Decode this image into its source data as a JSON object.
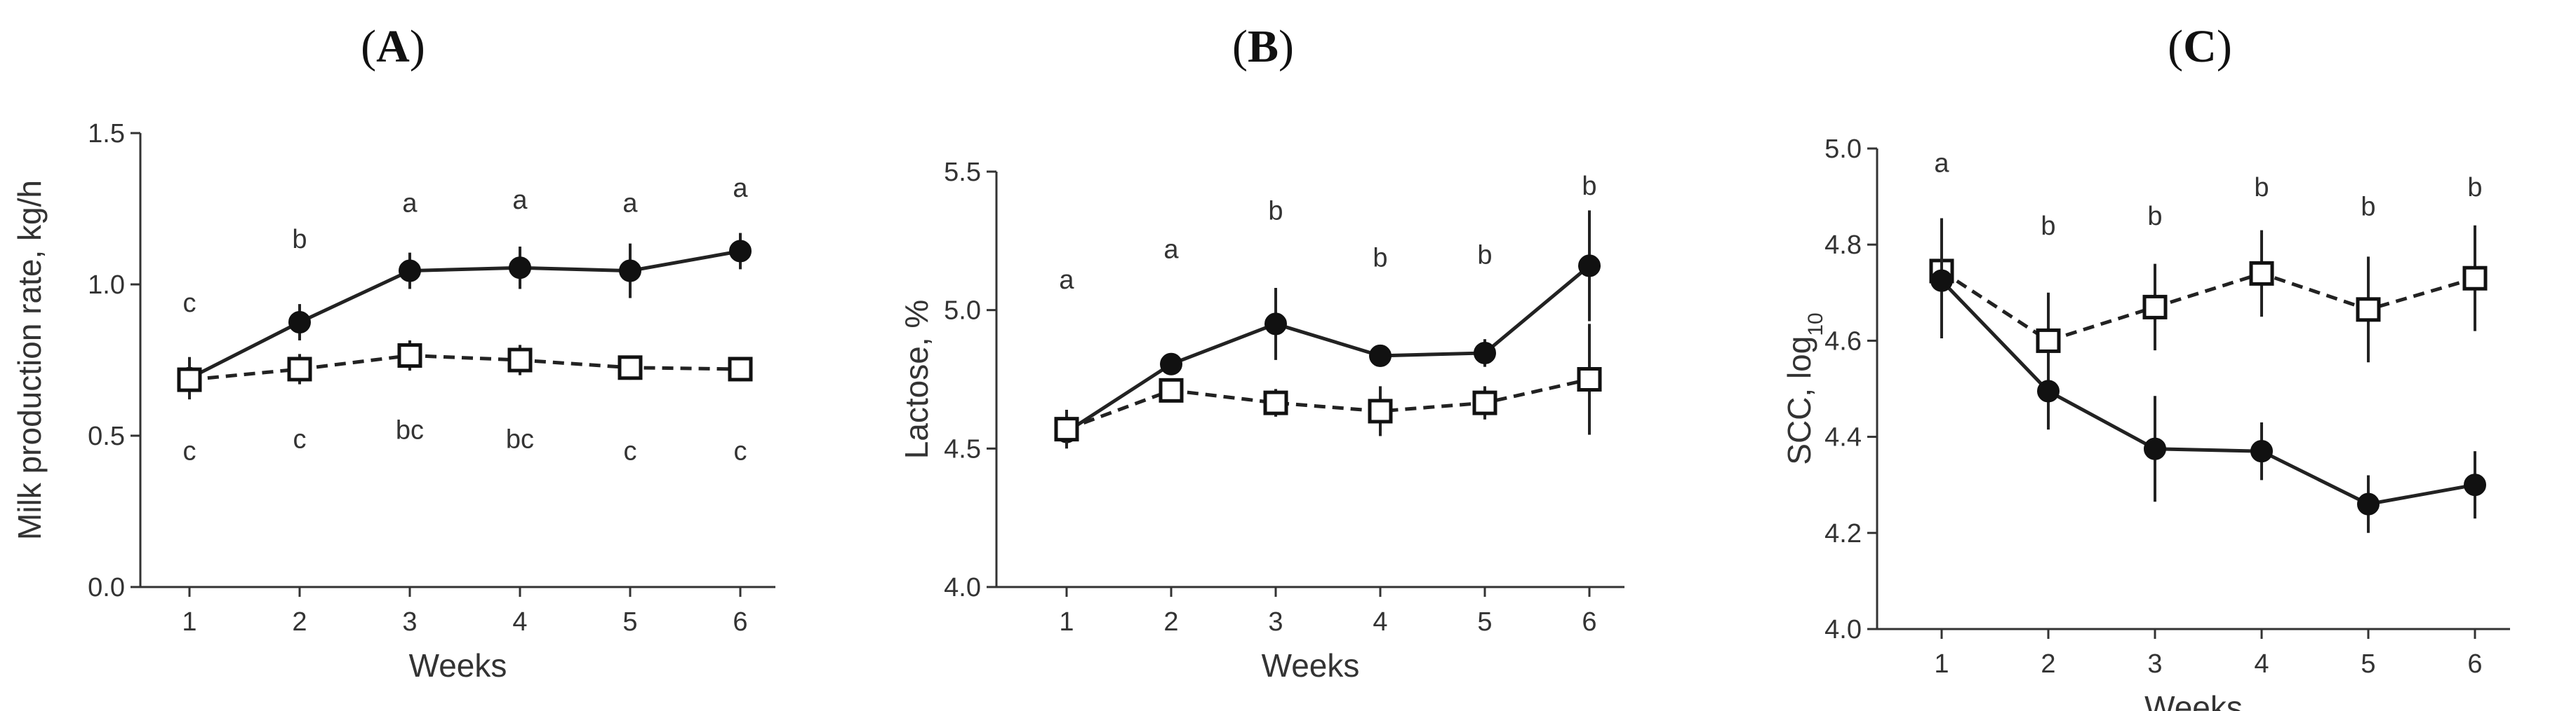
{
  "chart_data": [
    {
      "type": "line",
      "panel_label": [
        "(",
        "A",
        ")"
      ],
      "xlabel": "Weeks",
      "ylabel": "Milk production rate, kg/h",
      "ylabel_sub": "",
      "x": [
        1,
        2,
        3,
        4,
        5,
        6
      ],
      "ylim": [
        0.0,
        1.5
      ],
      "yticks": [
        0.0,
        0.5,
        1.0,
        1.5
      ],
      "ytick_labels": [
        "0.0",
        "0.5",
        "1.0",
        "1.5"
      ],
      "series": [
        {
          "name": "filled circle (solid line)",
          "marker": "filled-circle",
          "line": "solid",
          "values": [
            0.69,
            0.875,
            1.045,
            1.055,
            1.045,
            1.11
          ],
          "err": [
            0.07,
            0.06,
            0.06,
            0.07,
            0.09,
            0.06
          ],
          "letters": [
            "c",
            "b",
            "a",
            "a",
            "a",
            "a"
          ],
          "letter_values": [
            0.94,
            1.15,
            1.27,
            1.28,
            1.27,
            1.32
          ]
        },
        {
          "name": "open square (dashed line)",
          "marker": "open-square",
          "line": "dashed",
          "values": [
            0.685,
            0.72,
            0.765,
            0.75,
            0.725,
            0.72
          ],
          "err": [
            0.05,
            0.05,
            0.05,
            0.05,
            0.04,
            0.04
          ],
          "letters": [
            "c",
            "c",
            "bc",
            "bc",
            "c",
            "c"
          ],
          "letter_values": [
            0.45,
            0.49,
            0.52,
            0.49,
            0.45,
            0.45
          ]
        }
      ]
    },
    {
      "type": "line",
      "panel_label": [
        "(",
        "B",
        ")"
      ],
      "xlabel": "Weeks",
      "ylabel": "Lactose, %",
      "ylabel_sub": "",
      "x": [
        1,
        2,
        3,
        4,
        5,
        6
      ],
      "ylim": [
        4.0,
        5.5
      ],
      "yticks": [
        4.0,
        4.5,
        5.0,
        5.5
      ],
      "ytick_labels": [
        "4.0",
        "4.5",
        "5.0",
        "5.5"
      ],
      "series": [
        {
          "name": "filled circle (solid line)",
          "marker": "filled-circle",
          "line": "solid",
          "values": [
            4.56,
            4.805,
            4.95,
            4.835,
            4.845,
            5.16
          ],
          "err": [
            0.05,
            0.04,
            0.13,
            0.04,
            0.05,
            0.2
          ],
          "letters": [
            "a",
            "a",
            "b",
            "b",
            "b",
            "b"
          ],
          "letter_values": [
            5.11,
            5.22,
            5.36,
            5.19,
            5.2,
            5.45
          ]
        },
        {
          "name": "open square (dashed line)",
          "marker": "open-square",
          "line": "dashed",
          "values": [
            4.57,
            4.71,
            4.665,
            4.635,
            4.665,
            4.75
          ],
          "err": [
            0.07,
            0.04,
            0.05,
            0.09,
            0.06,
            0.2
          ],
          "letters": [],
          "letter_values": []
        }
      ]
    },
    {
      "type": "line",
      "panel_label": [
        "(",
        "C",
        ")"
      ],
      "xlabel": "Weeks",
      "ylabel": "SCC, log",
      "ylabel_sub": "10",
      "x": [
        1,
        2,
        3,
        4,
        5,
        6
      ],
      "ylim": [
        4.0,
        5.0
      ],
      "yticks": [
        4.0,
        4.2,
        4.4,
        4.6,
        4.8,
        5.0
      ],
      "ytick_labels": [
        "4.0",
        "4.2",
        "4.4",
        "4.6",
        "4.8",
        "5.0"
      ],
      "series": [
        {
          "name": "open square (dashed line)",
          "marker": "open-square",
          "line": "dashed",
          "values": [
            4.745,
            4.6,
            4.67,
            4.74,
            4.665,
            4.73
          ],
          "err": [
            0.11,
            0.1,
            0.09,
            0.09,
            0.11,
            0.11
          ],
          "letters": [
            "a",
            "b",
            "b",
            "b",
            "b",
            "b"
          ],
          "letter_values": [
            4.97,
            4.84,
            4.86,
            4.92,
            4.88,
            4.92
          ]
        },
        {
          "name": "filled circle (solid line)",
          "marker": "filled-circle",
          "line": "solid",
          "values": [
            4.725,
            4.495,
            4.375,
            4.37,
            4.26,
            4.3
          ],
          "err": [
            0.12,
            0.08,
            0.11,
            0.06,
            0.06,
            0.07
          ],
          "letters": [],
          "letter_values": []
        }
      ]
    }
  ]
}
